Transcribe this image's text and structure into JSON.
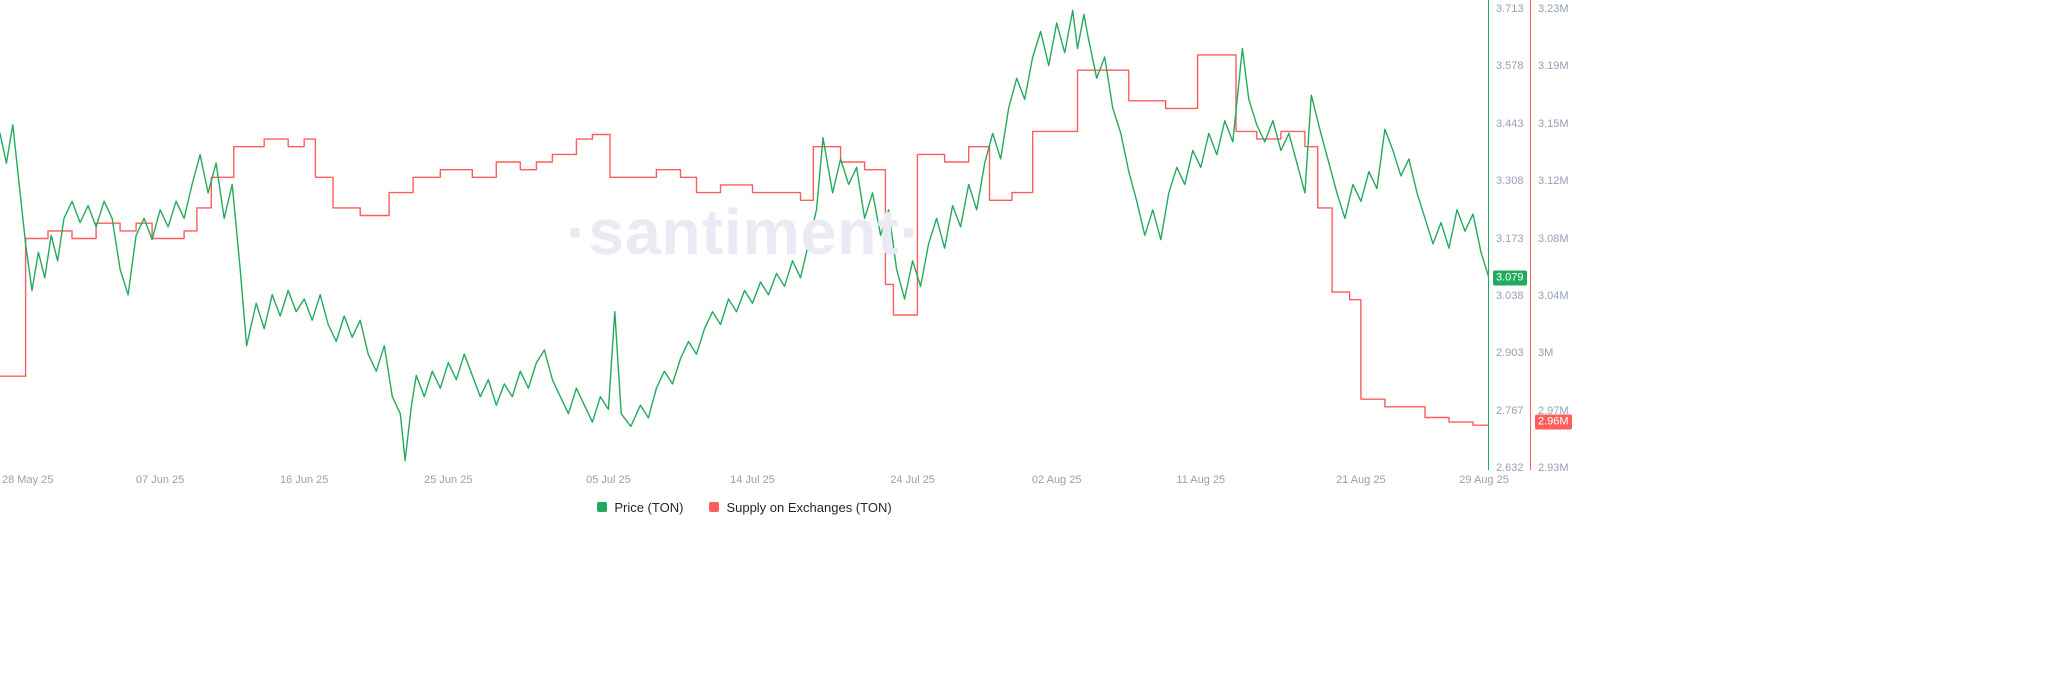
{
  "watermark_text": "·santiment·",
  "legend": {
    "items": [
      {
        "label": "Price (TON)",
        "color": "#22ab5c"
      },
      {
        "label": "Supply on Exchanges (TON)",
        "color": "#ff5c5c"
      }
    ]
  },
  "chart_data": {
    "type": "line",
    "watermark": "·santiment·",
    "grid": "off",
    "legend_position": "bottom-center",
    "x_range": [
      0,
      93
    ],
    "x_ticks": [
      {
        "day": 0,
        "label": "28 May 25"
      },
      {
        "day": 10,
        "label": "07 Jun 25"
      },
      {
        "day": 19,
        "label": "16 Jun 25"
      },
      {
        "day": 28,
        "label": "25 Jun 25"
      },
      {
        "day": 38,
        "label": "05 Jul 25"
      },
      {
        "day": 47,
        "label": "14 Jul 25"
      },
      {
        "day": 57,
        "label": "24 Jul 25"
      },
      {
        "day": 66,
        "label": "02 Aug 25"
      },
      {
        "day": 75,
        "label": "11 Aug 25"
      },
      {
        "day": 85,
        "label": "21 Aug 25"
      },
      {
        "day": 93,
        "label": "29 Aug 25"
      }
    ],
    "left_axis": {
      "label": "Price (TON)",
      "range": [
        2.632,
        3.713
      ],
      "ticks": [
        "3.713",
        "3.578",
        "3.443",
        "3.308",
        "3.173",
        "3.038",
        "2.903",
        "2.767",
        "2.632"
      ],
      "badge": {
        "text": "3.079",
        "value": 3.079
      }
    },
    "right_axis": {
      "label": "Supply on Exchanges (TON)",
      "range": [
        2.93,
        3.23
      ],
      "ticks": [
        "3.23M",
        "3.19M",
        "3.15M",
        "3.12M",
        "3.08M",
        "3.04M",
        "3M",
        "2.97M",
        "2.93M"
      ],
      "badge": {
        "text": "2.96M",
        "value": 2.96
      }
    },
    "series": [
      {
        "name": "Price (TON)",
        "color": "#22ab5c",
        "axis": "left",
        "line_style": "linear",
        "points": [
          [
            0,
            3.42
          ],
          [
            0.4,
            3.35
          ],
          [
            0.8,
            3.44
          ],
          [
            1.2,
            3.3
          ],
          [
            1.6,
            3.16
          ],
          [
            2,
            3.05
          ],
          [
            2.4,
            3.14
          ],
          [
            2.8,
            3.08
          ],
          [
            3.2,
            3.18
          ],
          [
            3.6,
            3.12
          ],
          [
            4,
            3.22
          ],
          [
            4.5,
            3.26
          ],
          [
            5,
            3.21
          ],
          [
            5.5,
            3.25
          ],
          [
            6,
            3.2
          ],
          [
            6.5,
            3.26
          ],
          [
            7,
            3.22
          ],
          [
            7.5,
            3.1
          ],
          [
            8,
            3.04
          ],
          [
            8.5,
            3.18
          ],
          [
            9,
            3.22
          ],
          [
            9.5,
            3.17
          ],
          [
            10,
            3.24
          ],
          [
            10.5,
            3.2
          ],
          [
            11,
            3.26
          ],
          [
            11.5,
            3.22
          ],
          [
            12,
            3.3
          ],
          [
            12.5,
            3.37
          ],
          [
            13,
            3.28
          ],
          [
            13.5,
            3.35
          ],
          [
            14,
            3.22
          ],
          [
            14.5,
            3.3
          ],
          [
            15,
            3.1
          ],
          [
            15.4,
            2.92
          ],
          [
            16,
            3.02
          ],
          [
            16.5,
            2.96
          ],
          [
            17,
            3.04
          ],
          [
            17.5,
            2.99
          ],
          [
            18,
            3.05
          ],
          [
            18.5,
            3.0
          ],
          [
            19,
            3.03
          ],
          [
            19.5,
            2.98
          ],
          [
            20,
            3.04
          ],
          [
            20.5,
            2.97
          ],
          [
            21,
            2.93
          ],
          [
            21.5,
            2.99
          ],
          [
            22,
            2.94
          ],
          [
            22.5,
            2.98
          ],
          [
            23,
            2.9
          ],
          [
            23.5,
            2.86
          ],
          [
            24,
            2.92
          ],
          [
            24.5,
            2.8
          ],
          [
            25,
            2.76
          ],
          [
            25.3,
            2.65
          ],
          [
            25.7,
            2.78
          ],
          [
            26,
            2.85
          ],
          [
            26.5,
            2.8
          ],
          [
            27,
            2.86
          ],
          [
            27.5,
            2.82
          ],
          [
            28,
            2.88
          ],
          [
            28.5,
            2.84
          ],
          [
            29,
            2.9
          ],
          [
            29.5,
            2.85
          ],
          [
            30,
            2.8
          ],
          [
            30.5,
            2.84
          ],
          [
            31,
            2.78
          ],
          [
            31.5,
            2.83
          ],
          [
            32,
            2.8
          ],
          [
            32.5,
            2.86
          ],
          [
            33,
            2.82
          ],
          [
            33.5,
            2.88
          ],
          [
            34,
            2.91
          ],
          [
            34.5,
            2.84
          ],
          [
            35,
            2.8
          ],
          [
            35.5,
            2.76
          ],
          [
            36,
            2.82
          ],
          [
            36.5,
            2.78
          ],
          [
            37,
            2.74
          ],
          [
            37.5,
            2.8
          ],
          [
            38,
            2.77
          ],
          [
            38.4,
            3.0
          ],
          [
            38.8,
            2.76
          ],
          [
            39.4,
            2.73
          ],
          [
            40,
            2.78
          ],
          [
            40.5,
            2.75
          ],
          [
            41,
            2.82
          ],
          [
            41.5,
            2.86
          ],
          [
            42,
            2.83
          ],
          [
            42.5,
            2.89
          ],
          [
            43,
            2.93
          ],
          [
            43.5,
            2.9
          ],
          [
            44,
            2.96
          ],
          [
            44.5,
            3.0
          ],
          [
            45,
            2.97
          ],
          [
            45.5,
            3.03
          ],
          [
            46,
            3.0
          ],
          [
            46.5,
            3.05
          ],
          [
            47,
            3.02
          ],
          [
            47.5,
            3.07
          ],
          [
            48,
            3.04
          ],
          [
            48.5,
            3.09
          ],
          [
            49,
            3.06
          ],
          [
            49.5,
            3.12
          ],
          [
            50,
            3.08
          ],
          [
            50.5,
            3.16
          ],
          [
            51,
            3.24
          ],
          [
            51.4,
            3.41
          ],
          [
            52,
            3.28
          ],
          [
            52.5,
            3.36
          ],
          [
            53,
            3.3
          ],
          [
            53.5,
            3.34
          ],
          [
            54,
            3.22
          ],
          [
            54.5,
            3.28
          ],
          [
            55,
            3.18
          ],
          [
            55.5,
            3.24
          ],
          [
            56,
            3.1
          ],
          [
            56.5,
            3.03
          ],
          [
            57,
            3.12
          ],
          [
            57.5,
            3.06
          ],
          [
            58,
            3.16
          ],
          [
            58.5,
            3.22
          ],
          [
            59,
            3.15
          ],
          [
            59.5,
            3.25
          ],
          [
            60,
            3.2
          ],
          [
            60.5,
            3.3
          ],
          [
            61,
            3.24
          ],
          [
            61.5,
            3.35
          ],
          [
            62,
            3.42
          ],
          [
            62.5,
            3.36
          ],
          [
            63,
            3.48
          ],
          [
            63.5,
            3.55
          ],
          [
            64,
            3.5
          ],
          [
            64.5,
            3.6
          ],
          [
            65,
            3.66
          ],
          [
            65.5,
            3.58
          ],
          [
            66,
            3.68
          ],
          [
            66.5,
            3.61
          ],
          [
            67,
            3.71
          ],
          [
            67.3,
            3.62
          ],
          [
            67.7,
            3.7
          ],
          [
            68,
            3.64
          ],
          [
            68.5,
            3.55
          ],
          [
            69,
            3.6
          ],
          [
            69.5,
            3.48
          ],
          [
            70,
            3.42
          ],
          [
            70.5,
            3.33
          ],
          [
            71,
            3.26
          ],
          [
            71.5,
            3.18
          ],
          [
            72,
            3.24
          ],
          [
            72.5,
            3.17
          ],
          [
            73,
            3.28
          ],
          [
            73.5,
            3.34
          ],
          [
            74,
            3.3
          ],
          [
            74.5,
            3.38
          ],
          [
            75,
            3.34
          ],
          [
            75.5,
            3.42
          ],
          [
            76,
            3.37
          ],
          [
            76.5,
            3.45
          ],
          [
            77,
            3.4
          ],
          [
            77.6,
            3.62
          ],
          [
            78,
            3.5
          ],
          [
            78.5,
            3.44
          ],
          [
            79,
            3.4
          ],
          [
            79.5,
            3.45
          ],
          [
            80,
            3.38
          ],
          [
            80.5,
            3.42
          ],
          [
            81,
            3.35
          ],
          [
            81.5,
            3.28
          ],
          [
            81.9,
            3.51
          ],
          [
            82.5,
            3.42
          ],
          [
            83,
            3.35
          ],
          [
            83.5,
            3.28
          ],
          [
            84,
            3.22
          ],
          [
            84.5,
            3.3
          ],
          [
            85,
            3.26
          ],
          [
            85.5,
            3.33
          ],
          [
            86,
            3.29
          ],
          [
            86.5,
            3.43
          ],
          [
            87,
            3.38
          ],
          [
            87.5,
            3.32
          ],
          [
            88,
            3.36
          ],
          [
            88.5,
            3.28
          ],
          [
            89,
            3.22
          ],
          [
            89.5,
            3.16
          ],
          [
            90,
            3.21
          ],
          [
            90.5,
            3.15
          ],
          [
            91,
            3.24
          ],
          [
            91.5,
            3.19
          ],
          [
            92,
            3.23
          ],
          [
            92.5,
            3.14
          ],
          [
            93,
            3.079
          ]
        ]
      },
      {
        "name": "Supply on Exchanges (TON)",
        "color": "#ff5c5c",
        "axis": "right",
        "line_style": "step",
        "points": [
          [
            0,
            2.99
          ],
          [
            1.6,
            3.08
          ],
          [
            3,
            3.085
          ],
          [
            4.5,
            3.08
          ],
          [
            6,
            3.09
          ],
          [
            7.5,
            3.085
          ],
          [
            8.5,
            3.09
          ],
          [
            9.5,
            3.08
          ],
          [
            11.5,
            3.085
          ],
          [
            12.3,
            3.1
          ],
          [
            13.2,
            3.12
          ],
          [
            14.6,
            3.14
          ],
          [
            16.5,
            3.145
          ],
          [
            18,
            3.14
          ],
          [
            19,
            3.145
          ],
          [
            19.7,
            3.12
          ],
          [
            20.8,
            3.1
          ],
          [
            22.5,
            3.095
          ],
          [
            24.3,
            3.11
          ],
          [
            25.8,
            3.12
          ],
          [
            27.5,
            3.125
          ],
          [
            29.5,
            3.12
          ],
          [
            31,
            3.13
          ],
          [
            32.5,
            3.125
          ],
          [
            33.5,
            3.13
          ],
          [
            34.5,
            3.135
          ],
          [
            36,
            3.145
          ],
          [
            37,
            3.148
          ],
          [
            38.1,
            3.12
          ],
          [
            39.5,
            3.12
          ],
          [
            41,
            3.125
          ],
          [
            42.5,
            3.12
          ],
          [
            43.5,
            3.11
          ],
          [
            45,
            3.115
          ],
          [
            47,
            3.11
          ],
          [
            49,
            3.11
          ],
          [
            50,
            3.105
          ],
          [
            50.8,
            3.14
          ],
          [
            52.5,
            3.13
          ],
          [
            54,
            3.125
          ],
          [
            55.3,
            3.05
          ],
          [
            55.8,
            3.03
          ],
          [
            57.3,
            3.135
          ],
          [
            59,
            3.13
          ],
          [
            60.5,
            3.14
          ],
          [
            61.8,
            3.105
          ],
          [
            63.2,
            3.11
          ],
          [
            64.5,
            3.15
          ],
          [
            67.3,
            3.19
          ],
          [
            70.5,
            3.17
          ],
          [
            72.8,
            3.165
          ],
          [
            74.8,
            3.2
          ],
          [
            77.2,
            3.15
          ],
          [
            78.5,
            3.145
          ],
          [
            80,
            3.15
          ],
          [
            81.5,
            3.14
          ],
          [
            82.3,
            3.1
          ],
          [
            83.2,
            3.045
          ],
          [
            84.3,
            3.04
          ],
          [
            85,
            2.975
          ],
          [
            86.5,
            2.97
          ],
          [
            89,
            2.963
          ],
          [
            90.5,
            2.96
          ],
          [
            92,
            2.958
          ],
          [
            93,
            2.958
          ]
        ]
      }
    ]
  }
}
